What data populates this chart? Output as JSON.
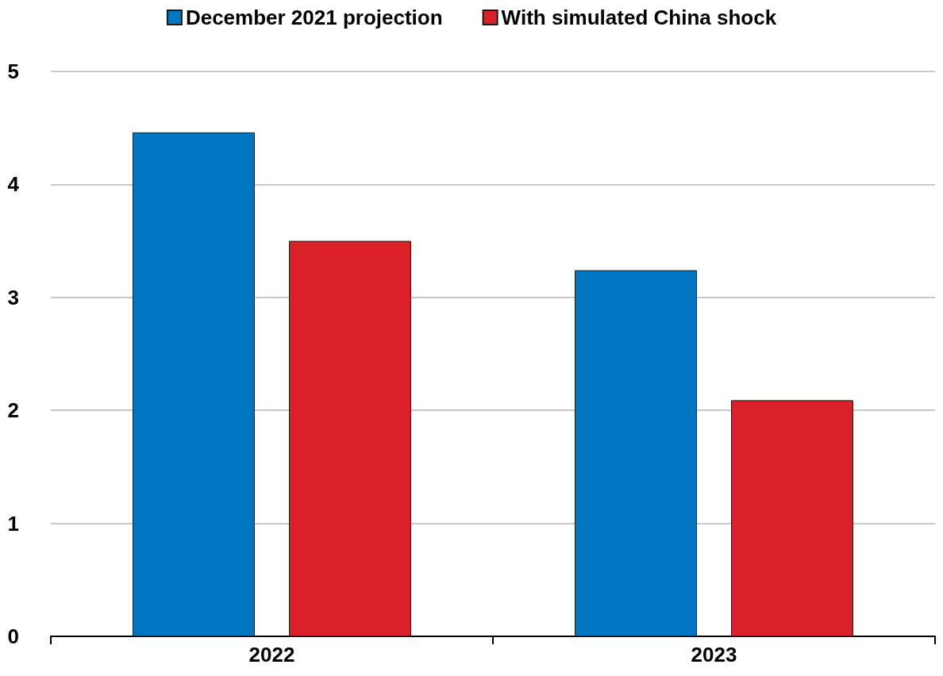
{
  "chart_data": {
    "type": "bar",
    "categories": [
      "2022",
      "2023"
    ],
    "series": [
      {
        "name": "December 2021 projection",
        "color": "#0077c0",
        "values": [
          4.46,
          3.24
        ]
      },
      {
        "name": "With simulated China shock",
        "color": "#da2128",
        "values": [
          3.5,
          2.09
        ]
      }
    ],
    "ylim": [
      0,
      5
    ],
    "yticks": [
      0,
      1,
      2,
      3,
      4,
      5
    ],
    "grid": "y",
    "legend": "top"
  }
}
